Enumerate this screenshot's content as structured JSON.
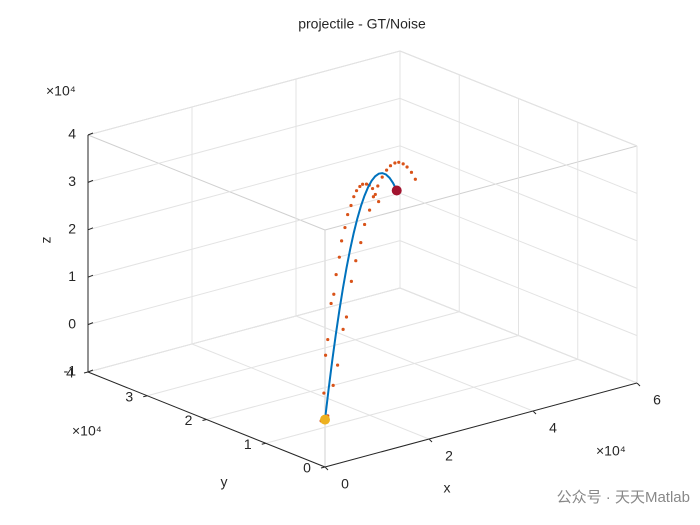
{
  "chart_data": {
    "type": "scatter3d",
    "title": "projectile - GT/Noise",
    "xlabel": "x",
    "ylabel": "y",
    "zlabel": "z",
    "x_exponent_label": "×10⁴",
    "y_exponent_label": "×10⁴",
    "z_exponent_label": "×10⁴",
    "watermark": "公众号 · 天天Matlab",
    "xlim": [
      0,
      60000
    ],
    "ylim": [
      0,
      40000
    ],
    "zlim": [
      -10000,
      40000
    ],
    "xticks": [
      0,
      {
        "value": 20000,
        "label": "2"
      },
      {
        "value": 40000,
        "label": "4"
      },
      {
        "value": 60000,
        "label": "6"
      }
    ],
    "yticks": [
      0,
      {
        "value": 10000,
        "label": "1"
      },
      {
        "value": 20000,
        "label": "2"
      },
      {
        "value": 30000,
        "label": "3"
      },
      {
        "value": 40000,
        "label": "4"
      }
    ],
    "zticks": [
      {
        "value": -10000,
        "label": "-1"
      },
      0,
      {
        "value": 10000,
        "label": "1"
      },
      {
        "value": 20000,
        "label": "2"
      },
      {
        "value": 30000,
        "label": "3"
      },
      {
        "value": 40000,
        "label": "4"
      }
    ],
    "grid": true,
    "series": [
      {
        "mode": "points",
        "color": "#D95319",
        "x": [
          300,
          -400,
          2600,
          1500,
          4700,
          3300,
          6900,
          5200,
          8800,
          7100,
          11000,
          9100,
          13100,
          10800,
          15200,
          12900,
          17300,
          14700,
          19400,
          16600,
          21500,
          18600,
          23600,
          20500,
          25700,
          22400,
          27800,
          24300,
          29800,
          26300,
          31900,
          28200,
          33900,
          30200,
          36000,
          32100,
          38000,
          34100,
          40100,
          36000,
          42100,
          38000
        ],
        "y": [
          -200,
          300,
          900,
          1500,
          2000,
          2800,
          3000,
          4100,
          4100,
          5200,
          5200,
          6500,
          6300,
          7600,
          7300,
          8900,
          8500,
          10100,
          9500,
          11200,
          10700,
          12500,
          11800,
          13600,
          12900,
          14800,
          14000,
          16000,
          15100,
          17200,
          16200,
          18400,
          17300,
          19500,
          18400,
          20700,
          19500,
          21900,
          20600,
          23100,
          21700,
          24300
        ],
        "z": [
          800,
          -300,
          6000,
          4400,
          9100,
          11200,
          15500,
          13300,
          17000,
          19800,
          23300,
          20500,
          26500,
          23600,
          29200,
          26000,
          31800,
          28300,
          33700,
          30000,
          35300,
          31500,
          36400,
          32300,
          37100,
          33000,
          37400,
          33100,
          37200,
          32800,
          36600,
          32100,
          35600,
          31000,
          34100,
          29600,
          32300,
          27700,
          30000,
          25300,
          27400,
          22600
        ]
      },
      {
        "mode": "line",
        "color": "#0072BD",
        "start_color": "#EDB120",
        "end_color": "#A2142F",
        "x": [
          0,
          2000,
          4000,
          6000,
          8000,
          10000,
          12000,
          14000,
          16000,
          18000,
          20000,
          22000,
          24000,
          26000,
          28000,
          30000,
          32000,
          34000,
          36000,
          38000,
          40000
        ],
        "y": [
          0,
          1150,
          2300,
          3450,
          4600,
          5750,
          6900,
          8050,
          9200,
          10350,
          11500,
          12650,
          13800,
          14950,
          16100,
          17250,
          18400,
          19550,
          20700,
          21850,
          23000
        ],
        "z": [
          0,
          5208,
          10000,
          14375,
          18333,
          21875,
          25000,
          27708,
          30000,
          31875,
          33333,
          34375,
          35000,
          35208,
          35000,
          34375,
          33333,
          31875,
          30000,
          27708,
          25000
        ]
      }
    ]
  }
}
